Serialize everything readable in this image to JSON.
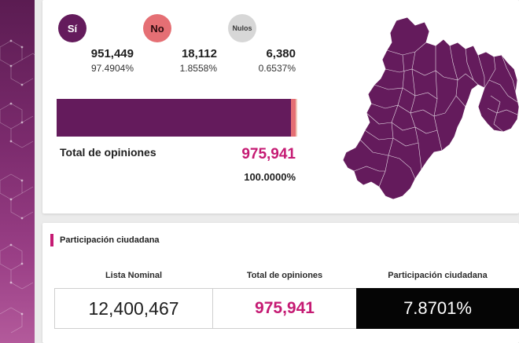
{
  "results": {
    "options": [
      {
        "label": "Sí",
        "count": "951,449",
        "percent": "97.4904%"
      },
      {
        "label": "No",
        "count": "18,112",
        "percent": "1.8558%"
      },
      {
        "label": "Nulos",
        "count": "6,380",
        "percent": "0.6537%"
      }
    ],
    "bar_segments": [
      {
        "share": 97.4904,
        "color": "#641b5c"
      },
      {
        "share": 1.8558,
        "color": "#e56f74"
      },
      {
        "share": 0.6537,
        "color": "#f0c8b8"
      }
    ],
    "total_label": "Total de opiniones",
    "total_value": "975,941",
    "total_percent": "100.0000%"
  },
  "participation": {
    "title": "Participación ciudadana",
    "columns": [
      {
        "label": "Lista Nominal",
        "value": "12,400,467"
      },
      {
        "label": "Total de opiniones",
        "value": "975,941"
      },
      {
        "label": "Participación ciudadana",
        "value": "7.8701%"
      }
    ]
  },
  "colors": {
    "brand_purple": "#641b5c",
    "accent_pink": "#c51a73",
    "no_red": "#e56f74",
    "nulos_gray": "#d7d7d7"
  }
}
